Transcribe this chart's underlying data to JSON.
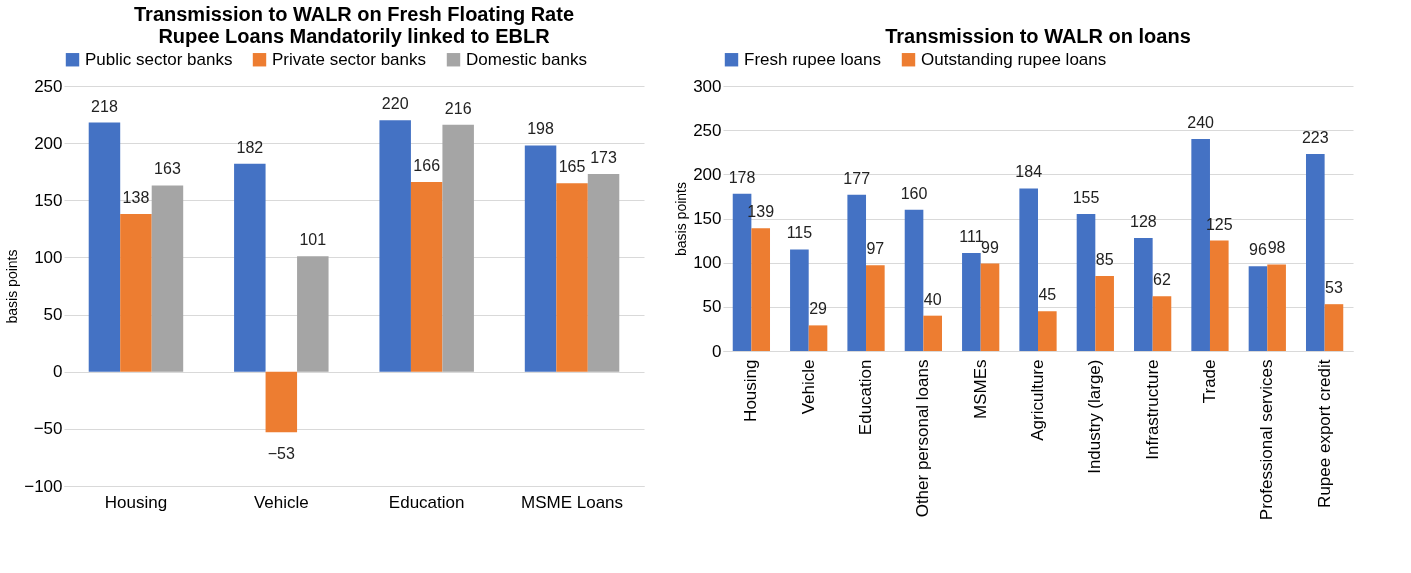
{
  "chart_data": [
    {
      "type": "bar",
      "title": "Transmission to WALR on Fresh Floating Rate Rupee Loans Mandatorily linked to EBLR",
      "ylabel": "basis points",
      "categories": [
        "Housing",
        "Vehicle",
        "Education",
        "MSME Loans"
      ],
      "series": [
        {
          "name": "Public sector banks",
          "color": "#4472c4",
          "values": [
            218,
            182,
            220,
            198
          ]
        },
        {
          "name": "Private sector banks",
          "color": "#ed7d31",
          "values": [
            138,
            -53,
            166,
            165
          ]
        },
        {
          "name": "Domestic banks",
          "color": "#a5a5a5",
          "values": [
            163,
            101,
            216,
            173
          ]
        }
      ],
      "ylim": [
        -100,
        250
      ],
      "yticks": [
        -100,
        -50,
        0,
        50,
        100,
        150,
        200,
        250
      ],
      "grid": "y",
      "legend": "top",
      "data_labels": true
    },
    {
      "type": "bar",
      "title": "Transmission to WALR on loans",
      "ylabel": "basis points",
      "categories": [
        "Housing",
        "Vehicle",
        "Education",
        "Other personal loans",
        "MSMEs",
        "Agriculture",
        "Industry (large)",
        "Infrastructure",
        "Trade",
        "Professional services",
        "Rupee export credit"
      ],
      "series": [
        {
          "name": "Fresh rupee loans",
          "color": "#4472c4",
          "values": [
            178,
            115,
            177,
            160,
            111,
            184,
            155,
            128,
            240,
            96,
            223
          ]
        },
        {
          "name": "Outstanding rupee loans",
          "color": "#ed7d31",
          "values": [
            139,
            29,
            97,
            40,
            99,
            45,
            85,
            62,
            125,
            98,
            53
          ]
        }
      ],
      "ylim": [
        0,
        300
      ],
      "yticks": [
        0,
        50,
        100,
        150,
        200,
        250,
        300
      ],
      "grid": "y",
      "legend": "top",
      "data_labels": true
    }
  ]
}
